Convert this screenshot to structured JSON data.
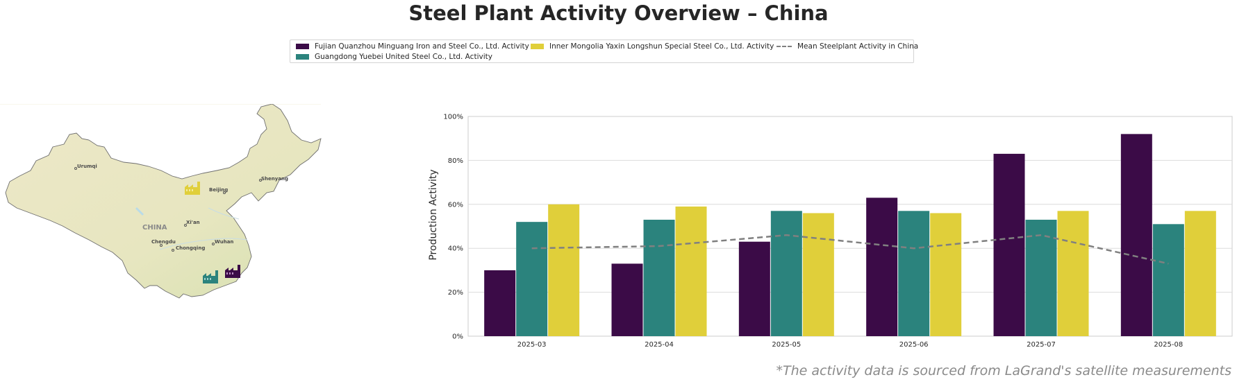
{
  "title": "Steel Plant Activity Overview – China",
  "footnote": "*The activity data is sourced from LaGrand's satellite measurements",
  "colors": {
    "fujian": "#3b0b47",
    "guangdong": "#2b837d",
    "inner_mongolia": "#e0cf3a",
    "mean": "#808080"
  },
  "legend": {
    "items": [
      {
        "label": "Fujian Quanzhou Minguang Iron and Steel Co., Ltd. Activity",
        "color": "#3b0b47",
        "kind": "bar"
      },
      {
        "label": "Guangdong Yuebei United Steel Co., Ltd. Activity",
        "color": "#2b837d",
        "kind": "bar"
      },
      {
        "label": "Inner Mongolia Yaxin Longshun Special Steel Co., Ltd. Activity",
        "color": "#e0cf3a",
        "kind": "bar"
      },
      {
        "label": "Mean Steelplant Activity in China",
        "color": "#808080",
        "kind": "line"
      }
    ]
  },
  "map": {
    "country_label": "CHINA",
    "cities": [
      "Urumqi",
      "Beijing",
      "Shenyang",
      "Xi'an",
      "Chengdu",
      "Chongqing",
      "Wuhan"
    ],
    "plant_icons": [
      {
        "name": "inner-mongolia-plant-icon",
        "color": "#e0cf3a"
      },
      {
        "name": "guangdong-plant-icon",
        "color": "#2b837d"
      },
      {
        "name": "fujian-plant-icon",
        "color": "#3b0b47"
      }
    ]
  },
  "chart_data": {
    "type": "bar",
    "categories": [
      "2025-03",
      "2025-04",
      "2025-05",
      "2025-06",
      "2025-07",
      "2025-08"
    ],
    "series": [
      {
        "name": "Fujian Quanzhou Minguang Iron and Steel Co., Ltd. Activity",
        "color": "#3b0b47",
        "values": [
          30,
          33,
          43,
          63,
          83,
          92
        ]
      },
      {
        "name": "Guangdong Yuebei United Steel Co., Ltd. Activity",
        "color": "#2b837d",
        "values": [
          52,
          53,
          57,
          57,
          53,
          51
        ]
      },
      {
        "name": "Inner Mongolia Yaxin Longshun Special Steel Co., Ltd. Activity",
        "color": "#e0cf3a",
        "values": [
          60,
          59,
          56,
          56,
          57,
          57
        ]
      }
    ],
    "line_series": {
      "name": "Mean Steelplant Activity in China",
      "color": "#808080",
      "style": "dashed",
      "values": [
        40,
        41,
        46,
        40,
        46,
        33
      ]
    },
    "ylabel": "Production Activity",
    "xlabel": "",
    "ylim": [
      0,
      100
    ],
    "yticks": [
      "0%",
      "20%",
      "40%",
      "60%",
      "80%",
      "100%"
    ],
    "grid": true
  }
}
